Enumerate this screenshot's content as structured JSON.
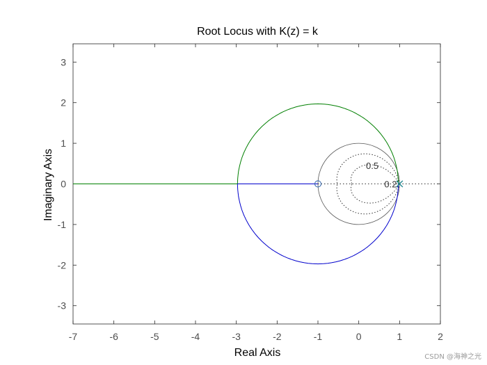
{
  "chart_data": {
    "type": "line",
    "title": "Root Locus with K(z) = k",
    "xlabel": "Real Axis",
    "ylabel": "Imaginary Axis",
    "xlim": [
      -7,
      2
    ],
    "ylim": [
      -3.45,
      3.45
    ],
    "xticks": [
      -7,
      -6,
      -5,
      -4,
      -3,
      -2,
      -1,
      0,
      1,
      2
    ],
    "yticks": [
      -3,
      -2,
      -1,
      0,
      1,
      2,
      3
    ],
    "grid": "off",
    "box": true,
    "poles": [
      {
        "x": 1,
        "y": 0
      },
      {
        "x": 1,
        "y": 0
      }
    ],
    "zeros": [
      {
        "x": -1,
        "y": 0
      }
    ],
    "series": [
      {
        "kind": "circle_arc",
        "center": [
          -1,
          0
        ],
        "radius": 1.97,
        "from_deg": 0,
        "to_deg": 180,
        "color": "#007f00"
      },
      {
        "kind": "segment",
        "x": [
          -7,
          -2.97
        ],
        "y": [
          0,
          0
        ],
        "color": "#007f00"
      },
      {
        "kind": "circle_arc",
        "center": [
          -1,
          0
        ],
        "radius": 1.97,
        "from_deg": 180,
        "to_deg": 360,
        "color": "#0000cc"
      },
      {
        "kind": "segment",
        "x": [
          -2.97,
          -1
        ],
        "y": [
          0,
          0
        ],
        "color": "#0000cc"
      }
    ],
    "unit_circle": {
      "center": [
        0,
        0
      ],
      "radius": 1,
      "color": "#555555"
    },
    "damping_curves": [
      {
        "zeta": 0.5,
        "label": "0.5",
        "label_at": [
          0.33,
          0.45
        ]
      },
      {
        "zeta": 0.2,
        "label": "0.2",
        "label_at": [
          0.78,
          0.0
        ]
      }
    ],
    "annotations": [
      "0.5",
      "0.2"
    ]
  },
  "watermark": "CSDN @海神之光"
}
